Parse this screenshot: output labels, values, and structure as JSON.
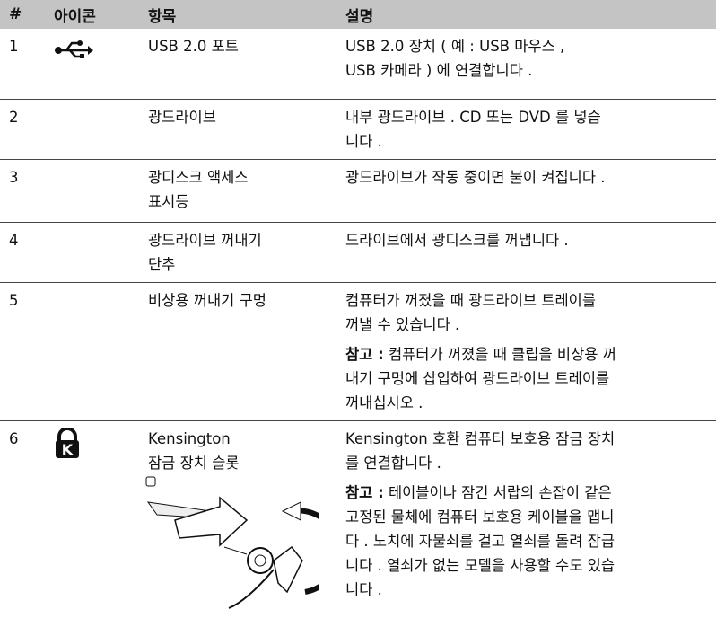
{
  "table": {
    "columns": [
      "#",
      "아이콘",
      "항목",
      "설명"
    ],
    "rows": [
      {
        "number": "1",
        "item": [
          "USB 2.0 포트"
        ],
        "description": [
          {
            "lines": [
              "USB 2.0 장치 ( 예 : USB 마우스 ,",
              "USB 카메라 ) 에 연결합니다 ."
            ]
          }
        ]
      },
      {
        "number": "2",
        "item": [
          "광드라이브"
        ],
        "description": [
          {
            "lines": [
              "내부 광드라이브 . CD 또는 DVD 를 넣습",
              "니다 ."
            ]
          }
        ]
      },
      {
        "number": "3",
        "item": [
          "광디스크 액세스",
          "표시등"
        ],
        "description": [
          {
            "lines": [
              "광드라이브가 작동 중이면 불이 켜집니다 ."
            ]
          }
        ]
      },
      {
        "number": "4",
        "item": [
          "광드라이브 꺼내기",
          "단추"
        ],
        "description": [
          {
            "lines": [
              "드라이브에서 광디스크를 꺼냅니다 ."
            ]
          }
        ]
      },
      {
        "number": "5",
        "item": [
          "비상용 꺼내기 구멍"
        ],
        "description": [
          {
            "lines": [
              "컴퓨터가 꺼졌을 때 광드라이브 트레이를",
              "꺼낼 수 있습니다 ."
            ]
          },
          {
            "label": "참고 :",
            "lines": [
              " 컴퓨터가 꺼졌을 때 클립을 비상용 꺼",
              "내기 구멍에 삽입하여 광드라이브 트레이를",
              "꺼내십시오 ."
            ]
          }
        ]
      },
      {
        "number": "6",
        "item": [
          "Kensington",
          "잠금 장치 슬롯"
        ],
        "description": [
          {
            "lines": [
              "Kensington 호환 컴퓨터 보호용 잠금 장치",
              "를 연결합니다 ."
            ]
          },
          {
            "label": "참고 :",
            "lines": [
              " 테이블이나 잠긴 서랍의 손잡이 같은",
              "고정된 물체에 컴퓨터 보호용 케이블을 맵니",
              "다 . 노치에 자물쇠를 걸고 열쇠를 돌려 잠급",
              "니다 . 열쇠가 없는 모델을 사용할 수도 있습",
              "니다 ."
            ]
          }
        ]
      }
    ]
  }
}
